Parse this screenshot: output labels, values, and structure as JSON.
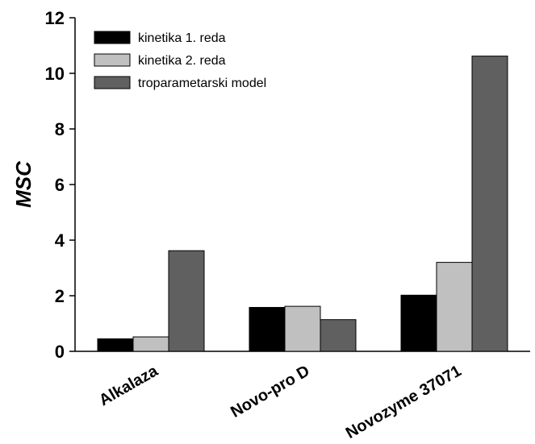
{
  "chart_data": {
    "type": "bar",
    "categories": [
      "Alkalaza",
      "Novo-pro D",
      "Novozyme 37071"
    ],
    "series": [
      {
        "name": "kinetika 1. reda",
        "color": "#000000",
        "values": [
          0.45,
          1.58,
          2.02
        ]
      },
      {
        "name": "kinetika 2. reda",
        "color": "#c0c0c0",
        "values": [
          0.52,
          1.62,
          3.2
        ]
      },
      {
        "name": "troparametarski model",
        "color": "#606060",
        "values": [
          3.62,
          1.14,
          10.62
        ]
      }
    ],
    "ylabel": "MSC",
    "xlabel": "",
    "ylim": [
      0,
      12
    ],
    "yticks": [
      0,
      2,
      4,
      6,
      8,
      10,
      12
    ],
    "grid": false,
    "legend_position": "top-left"
  }
}
